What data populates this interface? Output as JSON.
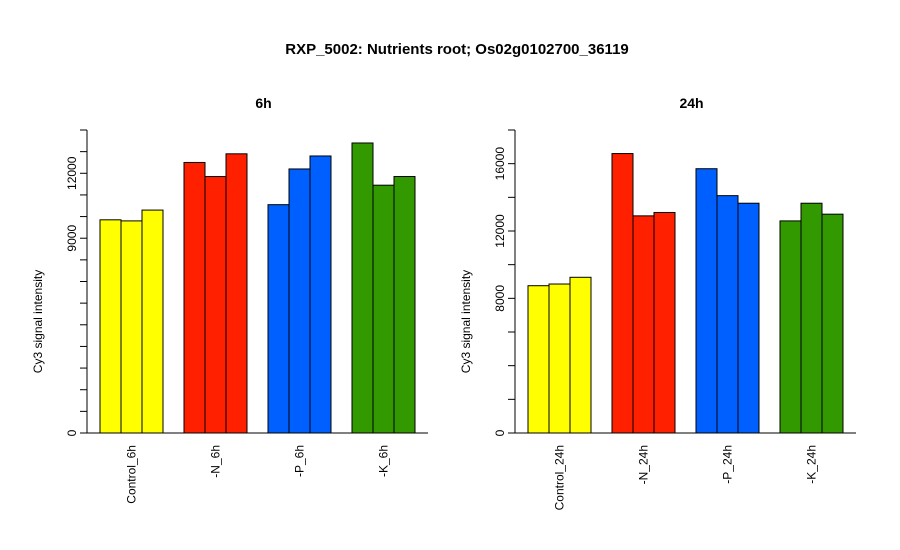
{
  "title": "RXP_5002: Nutrients root; Os02g0102700_36119",
  "colors": {
    "control": "#FFFF00",
    "N": "#FF2000",
    "P": "#0060FF",
    "K": "#339900"
  },
  "chart_data": [
    {
      "type": "bar",
      "title": "6h",
      "ylabel": "Cy3 signal intensity",
      "ylim": [
        0,
        14000
      ],
      "y_ticks": [
        0,
        1000,
        2000,
        3000,
        4000,
        5000,
        6000,
        7000,
        8000,
        9000,
        10000,
        11000,
        12000,
        13000,
        14000
      ],
      "y_tick_labels": [
        "0",
        "",
        "",
        "",
        "",
        "",
        "",
        "",
        "",
        "9000",
        "",
        "",
        "12000",
        "",
        ""
      ],
      "categories": [
        "Control_6h",
        "-N_6h",
        "-P_6h",
        "-K_6h"
      ],
      "groups": [
        {
          "category": "Control_6h",
          "color_key": "control",
          "values": [
            9850,
            9800,
            10300
          ]
        },
        {
          "category": "-N_6h",
          "color_key": "N",
          "values": [
            12500,
            11850,
            12900
          ]
        },
        {
          "category": "-P_6h",
          "color_key": "P",
          "values": [
            10550,
            12200,
            12800
          ]
        },
        {
          "category": "-K_6h",
          "color_key": "K",
          "values": [
            13400,
            11450,
            11850
          ]
        }
      ]
    },
    {
      "type": "bar",
      "title": "24h",
      "ylabel": "Cy3 signal intensity",
      "ylim": [
        0,
        18000
      ],
      "y_ticks": [
        0,
        2000,
        4000,
        6000,
        8000,
        10000,
        12000,
        14000,
        16000,
        18000
      ],
      "y_tick_labels": [
        "0",
        "",
        "",
        "",
        "8000",
        "",
        "12000",
        "",
        "16000",
        ""
      ],
      "categories": [
        "Control_24h",
        "-N_24h",
        "-P_24h",
        "-K_24h"
      ],
      "groups": [
        {
          "category": "Control_24h",
          "color_key": "control",
          "values": [
            8750,
            8850,
            9250
          ]
        },
        {
          "category": "-N_24h",
          "color_key": "N",
          "values": [
            16600,
            12900,
            13100
          ]
        },
        {
          "category": "-P_24h",
          "color_key": "P",
          "values": [
            15700,
            14100,
            13650
          ]
        },
        {
          "category": "-K_24h",
          "color_key": "K",
          "values": [
            12600,
            13650,
            13000
          ]
        }
      ]
    }
  ]
}
